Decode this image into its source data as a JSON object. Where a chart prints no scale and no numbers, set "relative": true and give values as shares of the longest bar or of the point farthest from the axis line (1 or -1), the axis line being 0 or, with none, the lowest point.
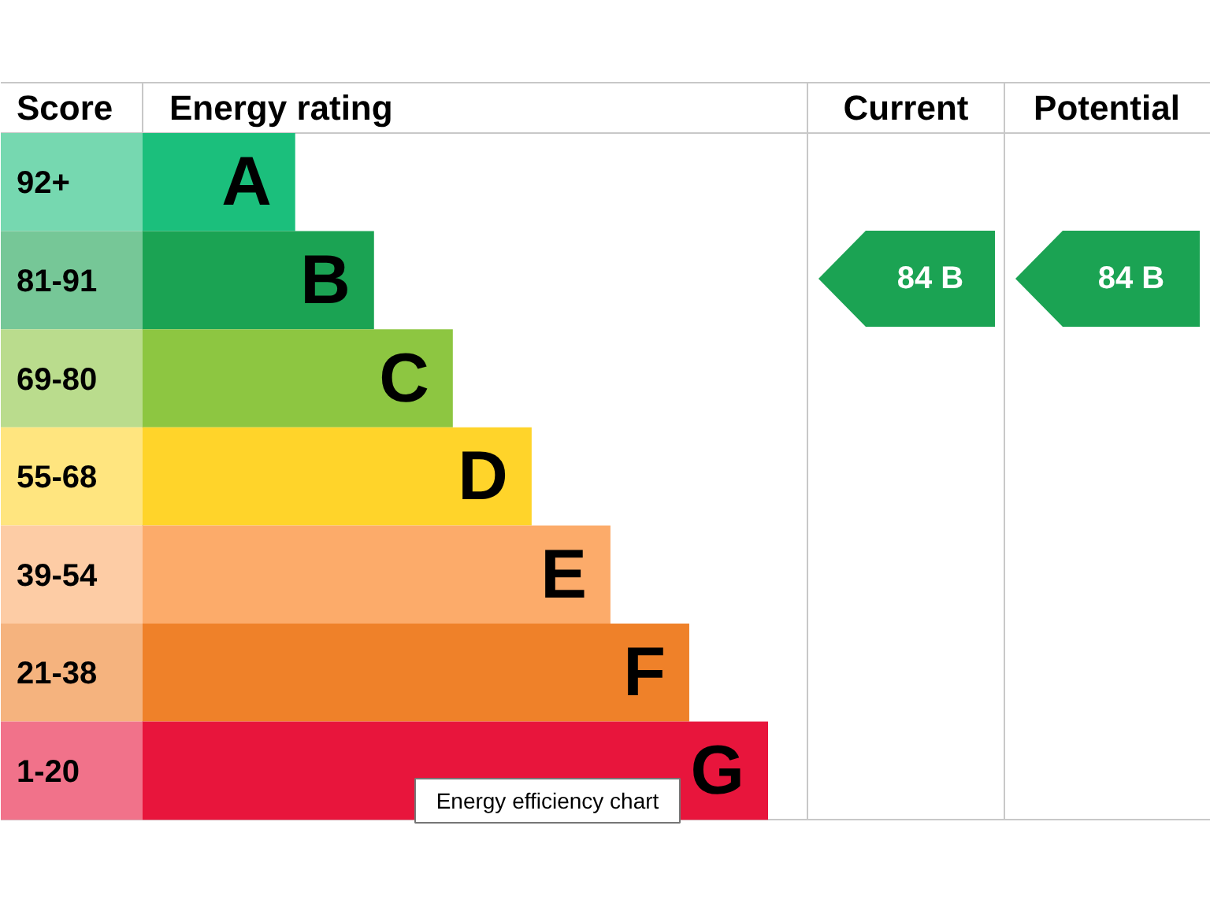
{
  "chart_data": {
    "type": "bar",
    "orientation": "horizontal",
    "relative": true,
    "xlabel": "Energy rating",
    "ylabel": "Score",
    "categories": [
      "A",
      "B",
      "C",
      "D",
      "E",
      "F",
      "G"
    ],
    "y2_categories": [
      "92+",
      "81-91",
      "69-80",
      "55-68",
      "39-54",
      "21-38",
      "1-20"
    ],
    "values": [
      0.244,
      0.37,
      0.496,
      0.622,
      0.748,
      0.874,
      1
    ],
    "colors": [
      "#1bbf7c",
      "#1ba353",
      "#8dc641",
      "#ffd42a",
      "#fcab6a",
      "#ef8129",
      "#e8153c"
    ],
    "annotations": [
      "Current",
      "Potential",
      "84 B",
      "84 B",
      "Energy efficiency chart"
    ]
  }
}
